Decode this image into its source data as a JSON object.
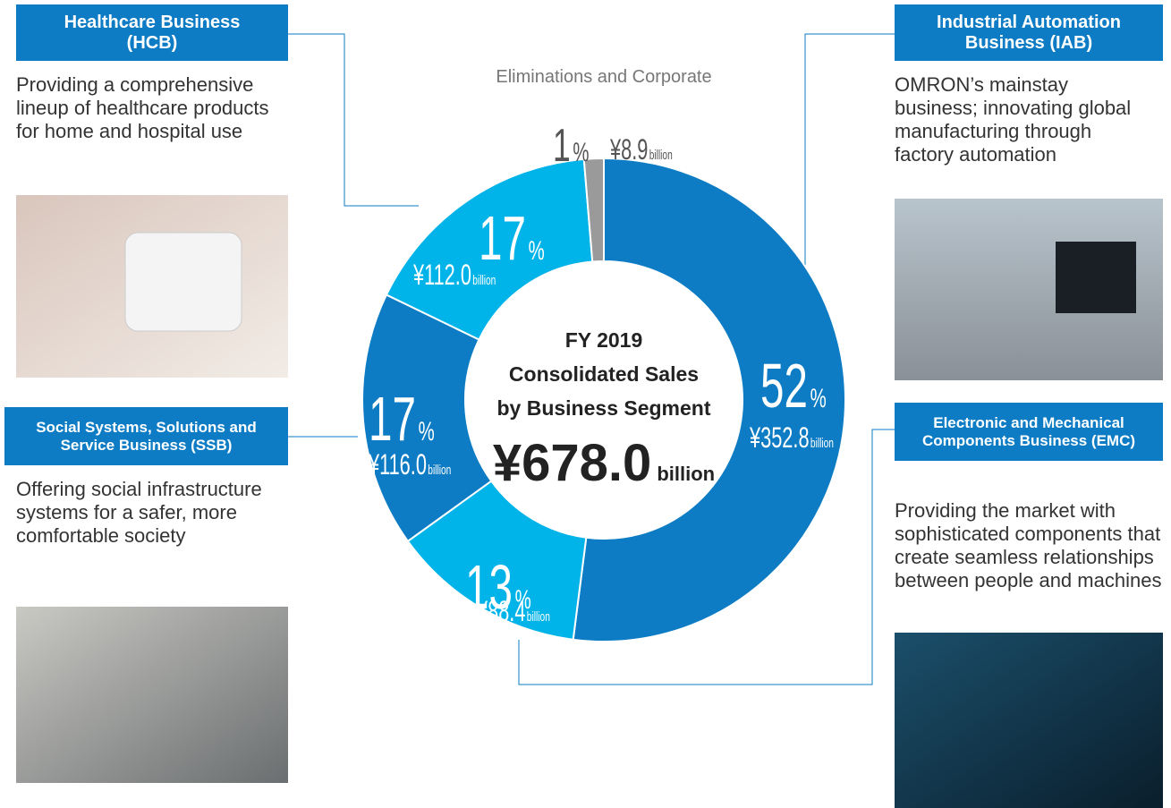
{
  "chart_data": {
    "type": "donut",
    "title_lines": [
      "FY 2019",
      "Consolidated Sales",
      "by Business Segment"
    ],
    "total_label": "¥678.0",
    "unit": "billion",
    "percent_unit": "%",
    "categories": [
      "Industrial Automation Business (IAB)",
      "Electronic and Mechanical Components Business (EMC)",
      "Social Systems, Solutions and Service Business (SSB)",
      "Healthcare Business (HCB)",
      "Eliminations and Corporate"
    ],
    "values": [
      352.8,
      88.4,
      116.0,
      112.0,
      8.9
    ],
    "value_labels": [
      "¥352.8",
      "¥88.4",
      "¥116.0",
      "¥112.0",
      "¥8.9"
    ],
    "percents": [
      52,
      13,
      17,
      17,
      1
    ],
    "colors": [
      "#0d7cc4",
      "#00b3e8",
      "#0d7cc4",
      "#00b3e8",
      "#9a9a9a"
    ]
  },
  "descriptions": [
    "OMRON’s mainstay business; innovating global manufacturing through factory automation",
    "Providing the market with sophisticated components that create seamless relationships between people and machines",
    "Offering social infrastructure systems for a safer, more comfortable society",
    "Providing a comprehensive lineup of healthcare products for home and hospital use"
  ]
}
